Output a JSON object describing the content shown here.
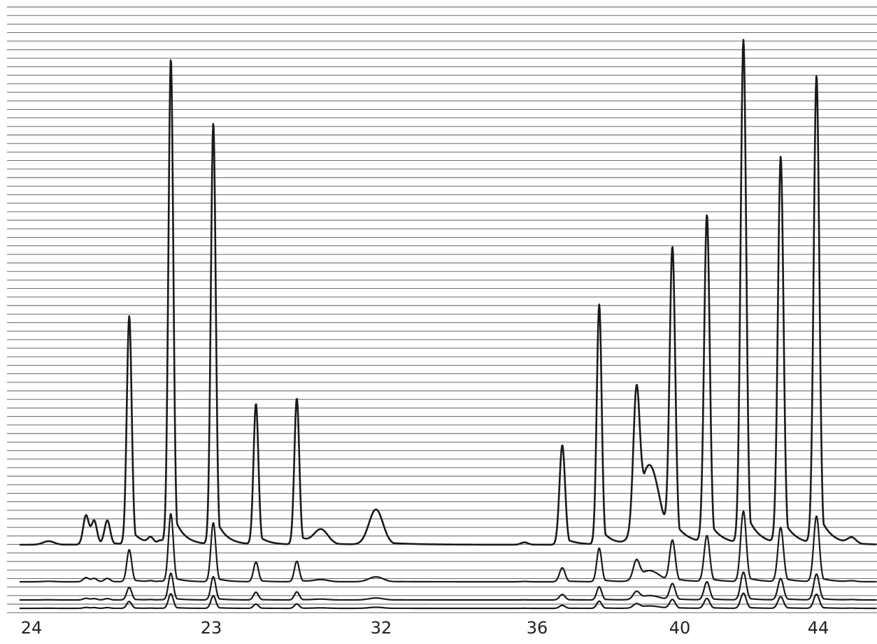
{
  "chart_data": {
    "type": "line",
    "title": "",
    "xlabel": "",
    "ylabel": "",
    "x_tick_labels": [
      "24",
      "23",
      "32",
      "36",
      "40",
      "44"
    ],
    "grid": true,
    "colors": {
      "trace": "#1a1a1a",
      "grid": "#555555",
      "paper": "#ffffff"
    },
    "peaks": [
      {
        "x": 69.5,
        "h": 0.006,
        "w": 8
      },
      {
        "x": 123.0,
        "h": 0.05,
        "w": 4
      },
      {
        "x": 134.5,
        "h": 0.04,
        "w": 4
      },
      {
        "x": 153.5,
        "h": 0.04,
        "w": 4
      },
      {
        "x": 184.8,
        "h": 0.39,
        "w": 3.5
      },
      {
        "x": 215.5,
        "h": 0.01,
        "w": 4
      },
      {
        "x": 229.5,
        "h": 0.006,
        "w": 4
      },
      {
        "x": 244.3,
        "h": 0.83,
        "w": 3.5
      },
      {
        "x": 305.0,
        "h": 0.72,
        "w": 3.5
      },
      {
        "x": 366.0,
        "h": 0.24,
        "w": 3.5
      },
      {
        "x": 424.4,
        "h": 0.25,
        "w": 3.5
      },
      {
        "x": 459.0,
        "h": 0.025,
        "w": 10
      },
      {
        "x": 537.6,
        "h": 0.06,
        "w": 10
      },
      {
        "x": 750.0,
        "h": 0.004,
        "w": 5
      },
      {
        "x": 804.0,
        "h": 0.17,
        "w": 4
      },
      {
        "x": 856.8,
        "h": 0.41,
        "w": 3.5
      },
      {
        "x": 910.0,
        "h": 0.22,
        "w": 4.5
      },
      {
        "x": 929.0,
        "h": 0.13,
        "w": 14
      },
      {
        "x": 961.5,
        "h": 0.5,
        "w": 4
      },
      {
        "x": 1010.8,
        "h": 0.56,
        "w": 4
      },
      {
        "x": 1063.0,
        "h": 0.86,
        "w": 4
      },
      {
        "x": 1116.3,
        "h": 0.66,
        "w": 4
      },
      {
        "x": 1167.5,
        "h": 0.8,
        "w": 4
      },
      {
        "x": 1218.0,
        "h": 0.01,
        "w": 6
      }
    ],
    "traces": [
      {
        "name": "",
        "scale": 1.0
      },
      {
        "name": "",
        "scale": 0.14
      },
      {
        "name": "",
        "scale": 0.055
      },
      {
        "name": "",
        "scale": 0.03
      }
    ]
  }
}
